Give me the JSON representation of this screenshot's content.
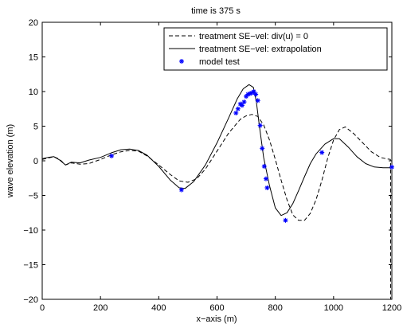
{
  "chart_data": {
    "type": "line",
    "title": "time is 375 s",
    "xlabel": "x−axis (m)",
    "ylabel": "wave elevation (m)",
    "xlim": [
      0,
      1200
    ],
    "ylim": [
      -20,
      20
    ],
    "xticks": [
      0,
      200,
      400,
      600,
      800,
      1000,
      1200
    ],
    "yticks": [
      -20,
      -15,
      -10,
      -5,
      0,
      5,
      10,
      15,
      20
    ],
    "xtick_labels": [
      "0",
      "200",
      "400",
      "600",
      "800",
      "1000",
      "1200"
    ],
    "ytick_labels": [
      "−20",
      "−15",
      "−10",
      "−5",
      "0",
      "5",
      "10",
      "15",
      "20"
    ],
    "grid": false,
    "legend_position": "top-right",
    "series": [
      {
        "name": "treatment SE−vel: div(u) = 0",
        "style": "dashed",
        "color": "#000000",
        "x": [
          0,
          20,
          40,
          60,
          80,
          100,
          130,
          160,
          200,
          240,
          270,
          300,
          330,
          360,
          400,
          440,
          470,
          500,
          530,
          560,
          600,
          640,
          680,
          700,
          720,
          740,
          760,
          780,
          800,
          820,
          840,
          860,
          880,
          900,
          920,
          940,
          960,
          980,
          1000,
          1020,
          1040,
          1070,
          1100,
          1130,
          1160,
          1180,
          1195,
          1196,
          1196
        ],
        "y": [
          0.2,
          0.4,
          0.6,
          0.2,
          -0.6,
          -0.3,
          -0.5,
          -0.4,
          0.2,
          0.9,
          1.3,
          1.5,
          1.4,
          0.7,
          -0.6,
          -2.0,
          -2.9,
          -3.1,
          -2.6,
          -1.2,
          1.4,
          4.0,
          6.0,
          6.5,
          6.7,
          6.4,
          5.2,
          3.0,
          0.2,
          -2.8,
          -5.6,
          -7.8,
          -8.6,
          -8.6,
          -7.6,
          -5.6,
          -2.8,
          0.4,
          3.0,
          4.5,
          4.9,
          3.9,
          2.6,
          1.3,
          0.5,
          0.3,
          0.2,
          0,
          -20
        ]
      },
      {
        "name": "treatment SE−vel: extrapolation",
        "style": "solid",
        "color": "#000000",
        "x": [
          0,
          20,
          40,
          60,
          80,
          100,
          130,
          160,
          200,
          240,
          270,
          300,
          330,
          360,
          400,
          440,
          470,
          490,
          520,
          560,
          600,
          640,
          670,
          690,
          710,
          725,
          735,
          745,
          760,
          780,
          800,
          820,
          840,
          860,
          880,
          900,
          920,
          940,
          970,
          1000,
          1020,
          1050,
          1080,
          1110,
          1140,
          1170,
          1195
        ],
        "y": [
          0.3,
          0.5,
          0.6,
          0.1,
          -0.6,
          -0.2,
          -0.3,
          0.1,
          0.5,
          1.2,
          1.6,
          1.7,
          1.5,
          0.8,
          -0.8,
          -2.8,
          -3.9,
          -4.0,
          -3.0,
          -0.6,
          2.6,
          6.2,
          9.0,
          10.4,
          11.0,
          10.6,
          8.5,
          5.2,
          0.5,
          -3.6,
          -6.8,
          -7.9,
          -7.5,
          -6.2,
          -4.3,
          -2.3,
          -0.4,
          1.0,
          2.4,
          3.2,
          3.2,
          2.0,
          0.6,
          -0.4,
          -0.9,
          -1.0,
          -1.0
        ]
      },
      {
        "name": "model test",
        "style": "markers",
        "marker": "*",
        "color": "#0000ff",
        "x": [
          238,
          478,
          665,
          672,
          680,
          686,
          693,
          700,
          706,
          713,
          719,
          726,
          733,
          740,
          748,
          755,
          762,
          768,
          772,
          835,
          960,
          1200
        ],
        "y": [
          0.7,
          -4.2,
          6.9,
          7.5,
          8.2,
          8.0,
          8.5,
          9.3,
          9.6,
          9.7,
          9.8,
          10.0,
          9.6,
          8.7,
          5.1,
          1.8,
          -0.8,
          -2.6,
          -3.9,
          -8.6,
          1.2,
          -0.9
        ]
      }
    ]
  }
}
